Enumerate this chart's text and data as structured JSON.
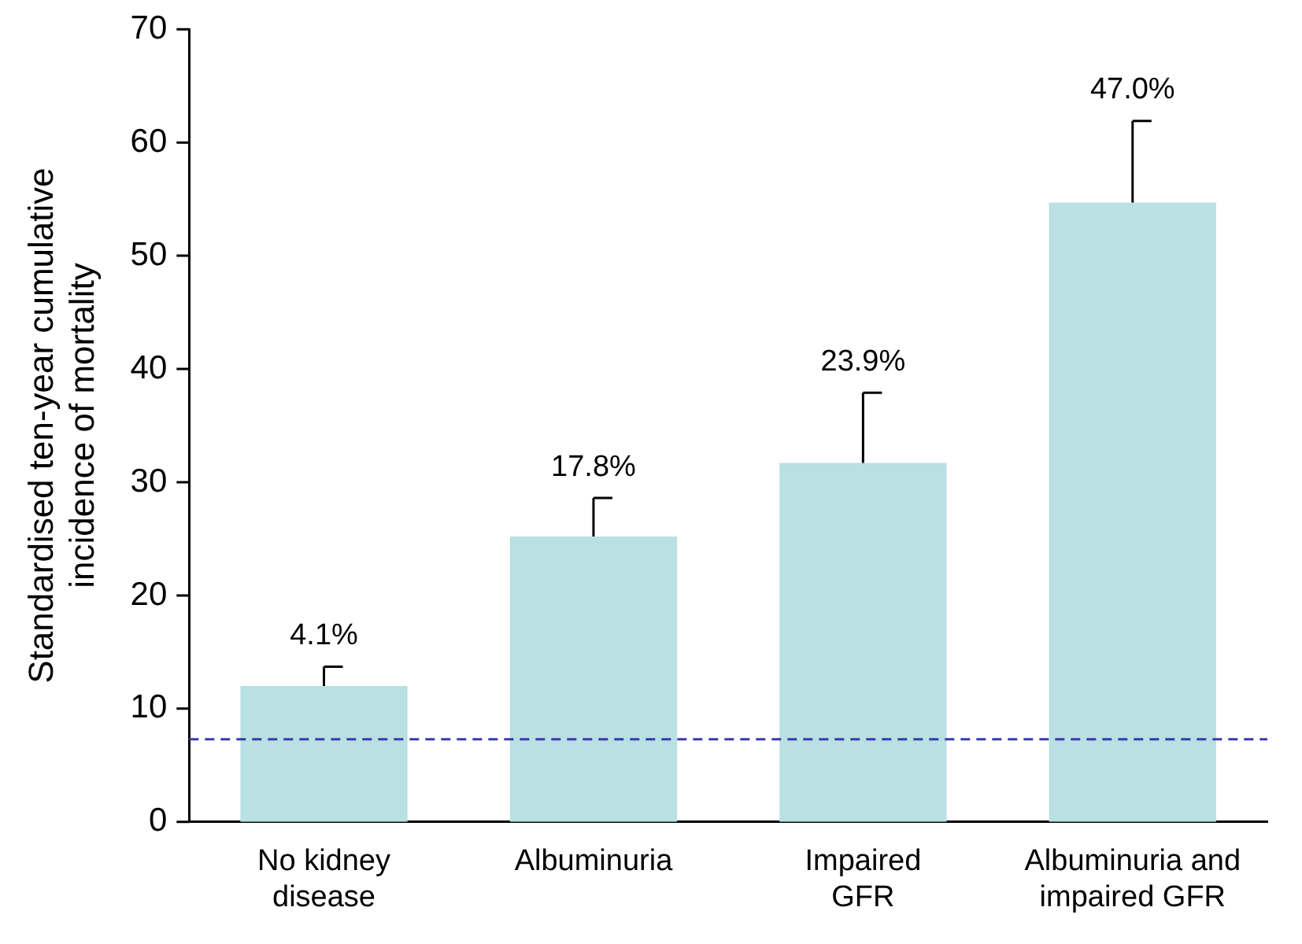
{
  "chart_data": {
    "type": "bar",
    "ylabel": "Standardised ten-year cumulative incidence of mortality",
    "categories": [
      "No kidney disease",
      "Albuminuria",
      "Impaired GFR",
      "Albuminuria and impaired GFR"
    ],
    "values": [
      12,
      25.2,
      31.7,
      54.7
    ],
    "errors": [
      [
        12,
        13.7
      ],
      [
        25.2,
        28.6
      ],
      [
        31.7,
        37.9
      ],
      [
        54.7,
        61.9
      ]
    ],
    "annotations": [
      {
        "text": "4.1%",
        "x": "No kidney disease",
        "y": 13.7
      },
      {
        "text": "17.8%",
        "x": "Albuminuria",
        "y": 28.6
      },
      {
        "text": "23.9%",
        "x": "Impaired GFR",
        "y": 37.9
      },
      {
        "text": "47.0%",
        "x": "Albuminuria and impaired GFR",
        "y": 61.9
      }
    ],
    "color": "#b9e0e2",
    "ylim": [
      0,
      70
    ],
    "yticks": [
      0,
      10,
      20,
      30,
      40,
      50,
      60,
      70
    ],
    "ref_lines": [
      {
        "axis": "y",
        "value": 7.3,
        "color": "#3a3ab0",
        "line_style": "dashed"
      }
    ],
    "grid": false,
    "legend": false
  }
}
